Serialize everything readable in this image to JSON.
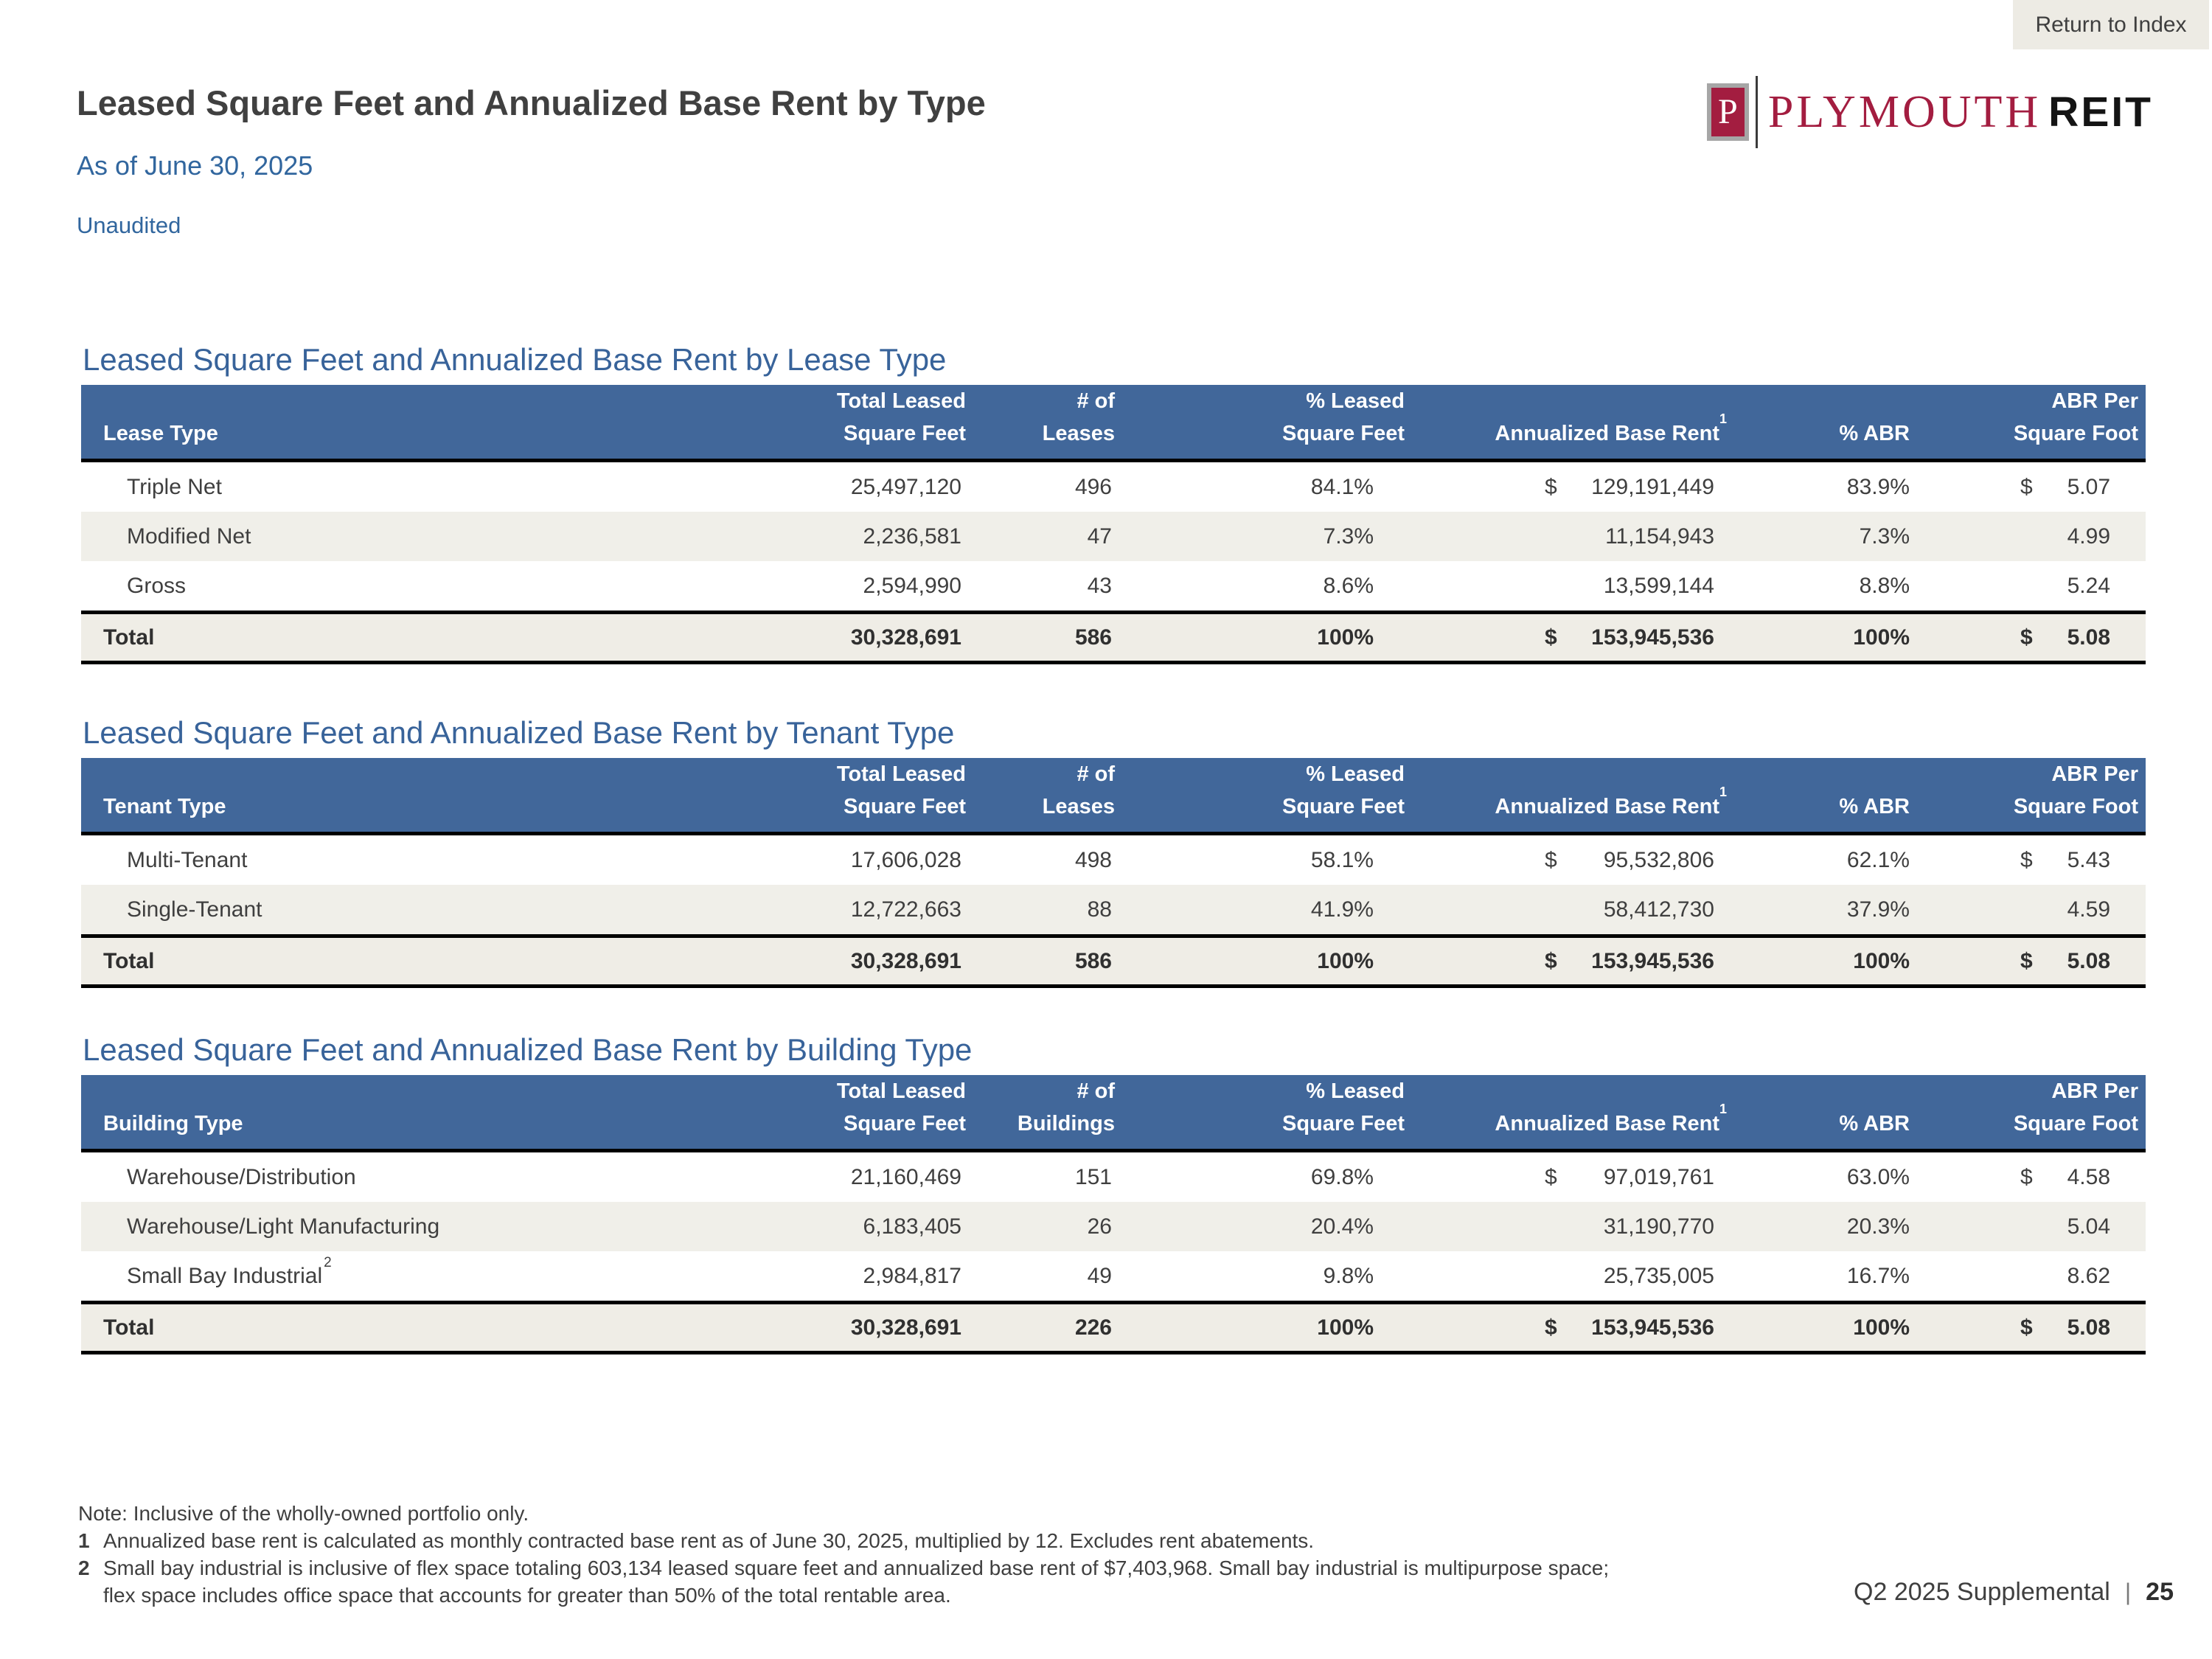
{
  "page": {
    "return_to_index": "Return to Index",
    "title": "Leased Square Feet and Annualized Base Rent by Type",
    "subtitle": "As of June 30, 2025",
    "unaudited": "Unaudited",
    "logo": {
      "p": "P",
      "plymouth": "PLYMOUTH",
      "reit": "REIT"
    },
    "notes": {
      "note": "Note: Inclusive of the wholly-owned portfolio only.",
      "fn1_num": "1",
      "fn1": "Annualized base rent is calculated as monthly contracted base rent as of June 30, 2025, multiplied by 12. Excludes rent abatements.",
      "fn2_num": "2",
      "fn2_line1": "Small bay industrial is inclusive of flex space totaling 603,134 leased square feet and annualized base rent of $7,403,968. Small bay industrial is multipurpose space;",
      "fn2_line2": "flex space includes office space that accounts for greater than 50% of the total rentable area."
    },
    "footer": {
      "supplemental": "Q2 2025 Supplemental",
      "divider": "|",
      "page_number": "25"
    }
  },
  "colors": {
    "header_blue": "#41679a",
    "section_title_blue": "#38639a",
    "subtitle_blue": "#31669e",
    "brand_crimson": "#a31d40",
    "row_stripe": "#f0efe9",
    "total_row": "#efede6",
    "return_btn_bg": "#edebe4"
  },
  "tables": [
    {
      "section_title": "Leased Square Feet and Annualized Base Rent by Lease Type",
      "columns": {
        "label": "Lease Type",
        "c2a": "Total Leased",
        "c2b": "Square Feet",
        "c3a": "# of",
        "c3b": "Leases",
        "c4a": "% Leased",
        "c4b": "Square Feet",
        "c5": "Annualized Base Rent",
        "c5_sup": "1",
        "c6": "% ABR",
        "c7a": "ABR Per",
        "c7b": "Square Foot"
      },
      "rows": [
        {
          "label": "Triple Net",
          "sqft": "25,497,120",
          "count": "496",
          "pct_sqft": "84.1%",
          "cur": "$",
          "abr": "129,191,449",
          "pct_abr": "83.9%",
          "cur2": "$",
          "psf": "5.07"
        },
        {
          "label": "Modified Net",
          "sqft": "2,236,581",
          "count": "47",
          "pct_sqft": "7.3%",
          "cur": "",
          "abr": "11,154,943",
          "pct_abr": "7.3%",
          "cur2": "",
          "psf": "4.99"
        },
        {
          "label": "Gross",
          "sqft": "2,594,990",
          "count": "43",
          "pct_sqft": "8.6%",
          "cur": "",
          "abr": "13,599,144",
          "pct_abr": "8.8%",
          "cur2": "",
          "psf": "5.24"
        }
      ],
      "total": {
        "label": "Total",
        "sqft": "30,328,691",
        "count": "586",
        "pct_sqft": "100%",
        "cur": "$",
        "abr": "153,945,536",
        "pct_abr": "100%",
        "cur2": "$",
        "psf": "5.08"
      }
    },
    {
      "section_title": "Leased Square Feet and Annualized Base Rent by Tenant Type",
      "columns": {
        "label": "Tenant Type",
        "c2a": "Total Leased",
        "c2b": "Square Feet",
        "c3a": "# of",
        "c3b": "Leases",
        "c4a": "% Leased",
        "c4b": "Square Feet",
        "c5": "Annualized Base Rent",
        "c5_sup": "1",
        "c6": "% ABR",
        "c7a": "ABR Per",
        "c7b": "Square Foot"
      },
      "rows": [
        {
          "label": "Multi-Tenant",
          "sqft": "17,606,028",
          "count": "498",
          "pct_sqft": "58.1%",
          "cur": "$",
          "abr": "95,532,806",
          "pct_abr": "62.1%",
          "cur2": "$",
          "psf": "5.43"
        },
        {
          "label": "Single-Tenant",
          "sqft": "12,722,663",
          "count": "88",
          "pct_sqft": "41.9%",
          "cur": "",
          "abr": "58,412,730",
          "pct_abr": "37.9%",
          "cur2": "",
          "psf": "4.59"
        }
      ],
      "total": {
        "label": "Total",
        "sqft": "30,328,691",
        "count": "586",
        "pct_sqft": "100%",
        "cur": "$",
        "abr": "153,945,536",
        "pct_abr": "100%",
        "cur2": "$",
        "psf": "5.08"
      }
    },
    {
      "section_title": "Leased Square Feet and Annualized Base Rent by Building Type",
      "columns": {
        "label": "Building Type",
        "c2a": "Total Leased",
        "c2b": "Square Feet",
        "c3a": "# of",
        "c3b": "Buildings",
        "c4a": "% Leased",
        "c4b": "Square Feet",
        "c5": "Annualized Base Rent",
        "c5_sup": "1",
        "c6": "% ABR",
        "c7a": "ABR Per",
        "c7b": "Square Foot"
      },
      "rows": [
        {
          "label": "Warehouse/Distribution",
          "sqft": "21,160,469",
          "count": "151",
          "pct_sqft": "69.8%",
          "cur": "$",
          "abr": "97,019,761",
          "pct_abr": "63.0%",
          "cur2": "$",
          "psf": "4.58"
        },
        {
          "label": "Warehouse/Light Manufacturing",
          "sqft": "6,183,405",
          "count": "26",
          "pct_sqft": "20.4%",
          "cur": "",
          "abr": "31,190,770",
          "pct_abr": "20.3%",
          "cur2": "",
          "psf": "5.04"
        },
        {
          "label": "Small Bay Industrial",
          "label_sup": "2",
          "sqft": "2,984,817",
          "count": "49",
          "pct_sqft": "9.8%",
          "cur": "",
          "abr": "25,735,005",
          "pct_abr": "16.7%",
          "cur2": "",
          "psf": "8.62"
        }
      ],
      "total": {
        "label": "Total",
        "sqft": "30,328,691",
        "count": "226",
        "pct_sqft": "100%",
        "cur": "$",
        "abr": "153,945,536",
        "pct_abr": "100%",
        "cur2": "$",
        "psf": "5.08"
      }
    }
  ]
}
